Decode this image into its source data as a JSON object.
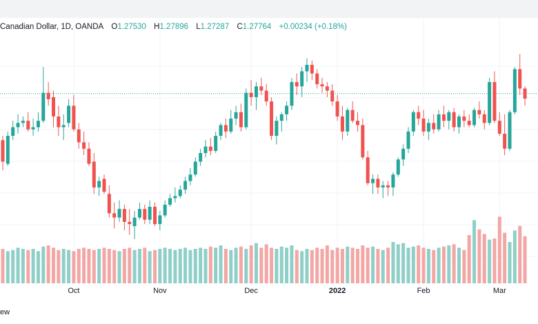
{
  "legend": {
    "symbol_text": "Canadian Dollar, 1D, OANDA",
    "open_label": "O",
    "open": "1.27530",
    "high_label": "H",
    "high": "1.27896",
    "low_label": "L",
    "low": "1.27287",
    "close_label": "C",
    "close": "1.27764",
    "change": "+0.00234 (+0.18%)"
  },
  "footer_text": "ew",
  "colors": {
    "up": "#26a69a",
    "down": "#ef5350",
    "up_volume": "#8fcfc8",
    "down_volume": "#f3a7a5",
    "grid": "#f0f3fa",
    "price_line": "#26a69a"
  },
  "chart_data": {
    "type": "candlestick",
    "title": "",
    "xlabel": "",
    "ylabel": "",
    "x_ticks": [
      "Oct",
      "Nov",
      "Dec",
      "2022",
      "Feb",
      "Mar"
    ],
    "x_tick_indices": [
      14,
      31,
      49,
      66,
      83,
      98
    ],
    "y_axis_visible": false,
    "ylim": [
      1.2,
      1.3
    ],
    "grid": true,
    "current_price_line": 1.27764,
    "ohlc": [
      [
        1.256,
        1.258,
        1.242,
        1.246
      ],
      [
        1.245,
        1.26,
        1.244,
        1.258
      ],
      [
        1.258,
        1.265,
        1.256,
        1.262
      ],
      [
        1.262,
        1.268,
        1.259,
        1.264
      ],
      [
        1.264,
        1.267,
        1.262,
        1.265
      ],
      [
        1.265,
        1.269,
        1.26,
        1.261
      ],
      [
        1.261,
        1.266,
        1.258,
        1.262
      ],
      [
        1.262,
        1.269,
        1.26,
        1.265
      ],
      [
        1.265,
        1.29,
        1.264,
        1.278
      ],
      [
        1.278,
        1.283,
        1.272,
        1.275
      ],
      [
        1.276,
        1.279,
        1.262,
        1.267
      ],
      [
        1.267,
        1.272,
        1.258,
        1.262
      ],
      [
        1.262,
        1.268,
        1.256,
        1.263
      ],
      [
        1.264,
        1.275,
        1.262,
        1.272
      ],
      [
        1.272,
        1.277,
        1.26,
        1.261
      ],
      [
        1.261,
        1.264,
        1.252,
        1.255
      ],
      [
        1.255,
        1.26,
        1.249,
        1.252
      ],
      [
        1.252,
        1.255,
        1.244,
        1.245
      ],
      [
        1.246,
        1.25,
        1.231,
        1.234
      ],
      [
        1.234,
        1.239,
        1.23,
        1.237
      ],
      [
        1.238,
        1.24,
        1.231,
        1.232
      ],
      [
        1.231,
        1.235,
        1.22,
        1.222
      ],
      [
        1.222,
        1.227,
        1.215,
        1.22
      ],
      [
        1.22,
        1.228,
        1.218,
        1.224
      ],
      [
        1.224,
        1.226,
        1.214,
        1.218
      ],
      [
        1.218,
        1.224,
        1.212,
        1.217
      ],
      [
        1.216,
        1.223,
        1.21,
        1.22
      ],
      [
        1.22,
        1.227,
        1.219,
        1.224
      ],
      [
        1.224,
        1.226,
        1.217,
        1.219
      ],
      [
        1.219,
        1.228,
        1.217,
        1.225
      ],
      [
        1.225,
        1.227,
        1.216,
        1.217
      ],
      [
        1.217,
        1.223,
        1.214,
        1.221
      ],
      [
        1.221,
        1.228,
        1.22,
        1.226
      ],
      [
        1.226,
        1.231,
        1.225,
        1.229
      ],
      [
        1.229,
        1.234,
        1.227,
        1.23
      ],
      [
        1.23,
        1.235,
        1.229,
        1.233
      ],
      [
        1.233,
        1.239,
        1.231,
        1.237
      ],
      [
        1.237,
        1.243,
        1.235,
        1.24
      ],
      [
        1.24,
        1.248,
        1.239,
        1.246
      ],
      [
        1.246,
        1.252,
        1.244,
        1.25
      ],
      [
        1.25,
        1.256,
        1.248,
        1.253
      ],
      [
        1.253,
        1.257,
        1.249,
        1.251
      ],
      [
        1.251,
        1.26,
        1.25,
        1.258
      ],
      [
        1.258,
        1.264,
        1.256,
        1.263
      ],
      [
        1.263,
        1.266,
        1.257,
        1.26
      ],
      [
        1.26,
        1.27,
        1.259,
        1.266
      ],
      [
        1.266,
        1.272,
        1.263,
        1.269
      ],
      [
        1.269,
        1.273,
        1.26,
        1.262
      ],
      [
        1.262,
        1.28,
        1.261,
        1.278
      ],
      [
        1.278,
        1.284,
        1.272,
        1.276
      ],
      [
        1.276,
        1.283,
        1.27,
        1.281
      ],
      [
        1.281,
        1.285,
        1.277,
        1.279
      ],
      [
        1.279,
        1.282,
        1.272,
        1.274
      ],
      [
        1.274,
        1.276,
        1.256,
        1.258
      ],
      [
        1.258,
        1.267,
        1.254,
        1.265
      ],
      [
        1.265,
        1.269,
        1.26,
        1.268
      ],
      [
        1.268,
        1.274,
        1.265,
        1.272
      ],
      [
        1.272,
        1.285,
        1.27,
        1.283
      ],
      [
        1.283,
        1.287,
        1.277,
        1.281
      ],
      [
        1.281,
        1.29,
        1.276,
        1.288
      ],
      [
        1.288,
        1.294,
        1.283,
        1.291
      ],
      [
        1.291,
        1.293,
        1.284,
        1.287
      ],
      [
        1.287,
        1.289,
        1.28,
        1.282
      ],
      [
        1.282,
        1.285,
        1.278,
        1.281
      ],
      [
        1.281,
        1.283,
        1.276,
        1.279
      ],
      [
        1.279,
        1.282,
        1.272,
        1.274
      ],
      [
        1.274,
        1.277,
        1.265,
        1.267
      ],
      [
        1.267,
        1.272,
        1.256,
        1.26
      ],
      [
        1.26,
        1.271,
        1.258,
        1.27
      ],
      [
        1.27,
        1.274,
        1.264,
        1.265
      ],
      [
        1.265,
        1.269,
        1.26,
        1.263
      ],
      [
        1.263,
        1.266,
        1.247,
        1.248
      ],
      [
        1.248,
        1.251,
        1.235,
        1.236
      ],
      [
        1.236,
        1.24,
        1.231,
        1.238
      ],
      [
        1.238,
        1.24,
        1.231,
        1.234
      ],
      [
        1.234,
        1.237,
        1.229,
        1.235
      ],
      [
        1.235,
        1.237,
        1.23,
        1.234
      ],
      [
        1.234,
        1.241,
        1.23,
        1.24
      ],
      [
        1.24,
        1.248,
        1.239,
        1.247
      ],
      [
        1.247,
        1.254,
        1.244,
        1.252
      ],
      [
        1.252,
        1.262,
        1.25,
        1.26
      ],
      [
        1.26,
        1.27,
        1.258,
        1.269
      ],
      [
        1.269,
        1.272,
        1.263,
        1.266
      ],
      [
        1.266,
        1.27,
        1.258,
        1.26
      ],
      [
        1.26,
        1.266,
        1.256,
        1.264
      ],
      [
        1.264,
        1.268,
        1.259,
        1.261
      ],
      [
        1.261,
        1.27,
        1.26,
        1.268
      ],
      [
        1.268,
        1.272,
        1.262,
        1.265
      ],
      [
        1.265,
        1.27,
        1.261,
        1.269
      ],
      [
        1.269,
        1.271,
        1.26,
        1.262
      ],
      [
        1.262,
        1.268,
        1.259,
        1.267
      ],
      [
        1.267,
        1.27,
        1.262,
        1.265
      ],
      [
        1.265,
        1.268,
        1.262,
        1.263
      ],
      [
        1.263,
        1.271,
        1.262,
        1.27
      ],
      [
        1.27,
        1.274,
        1.266,
        1.268
      ],
      [
        1.268,
        1.27,
        1.261,
        1.264
      ],
      [
        1.264,
        1.285,
        1.263,
        1.283
      ],
      [
        1.283,
        1.288,
        1.264,
        1.265
      ],
      [
        1.265,
        1.269,
        1.258,
        1.259
      ],
      [
        1.259,
        1.268,
        1.249,
        1.252
      ],
      [
        1.252,
        1.27,
        1.251,
        1.269
      ],
      [
        1.269,
        1.29,
        1.268,
        1.289
      ],
      [
        1.289,
        1.296,
        1.277,
        1.28
      ],
      [
        1.28,
        1.281,
        1.272,
        1.2753
      ]
    ],
    "volume": [
      30,
      28,
      29,
      31,
      30,
      29,
      30,
      28,
      32,
      33,
      31,
      29,
      30,
      29,
      28,
      30,
      31,
      30,
      29,
      30,
      31,
      30,
      29,
      28,
      30,
      31,
      29,
      30,
      31,
      28,
      29,
      30,
      31,
      30,
      29,
      30,
      31,
      29,
      30,
      31,
      30,
      32,
      31,
      33,
      30,
      29,
      31,
      32,
      30,
      33,
      35,
      31,
      34,
      31,
      30,
      32,
      31,
      33,
      29,
      28,
      30,
      29,
      31,
      30,
      33,
      29,
      31,
      30,
      32,
      31,
      30,
      33,
      31,
      32,
      30,
      29,
      31,
      36,
      34,
      35,
      31,
      32,
      33,
      31,
      30,
      29,
      31,
      32,
      33,
      34,
      31,
      29,
      42,
      55,
      47,
      43,
      38,
      39,
      58,
      44,
      36,
      46,
      50,
      41
    ],
    "volume_max": 60
  }
}
